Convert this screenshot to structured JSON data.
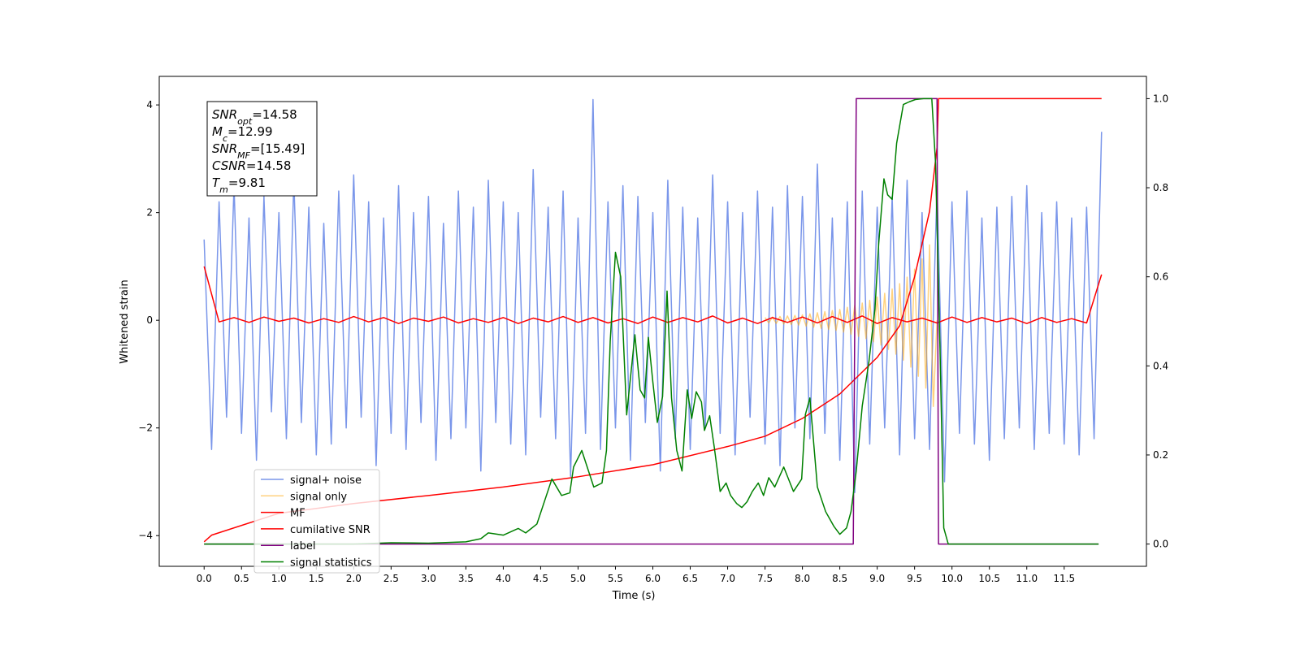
{
  "chart_data": {
    "type": "line",
    "xlabel": "Time (s)",
    "ylabel": "Whitened strain",
    "xlim": [
      -0.6,
      12.6
    ],
    "ylim": [
      -4.57,
      4.53
    ],
    "y2lim": [
      -0.05,
      1.05
    ],
    "xticks": [
      {
        "value": 0,
        "label": "0.0"
      },
      0.5,
      {
        "value": 1,
        "label": "1.0"
      },
      1.5,
      {
        "value": 2,
        "label": "2.0"
      },
      2.5,
      {
        "value": 3,
        "label": "3.0"
      },
      3.5,
      {
        "value": 4,
        "label": "4.0"
      },
      4.5,
      {
        "value": 5,
        "label": "5.0"
      },
      5.5,
      {
        "value": 6,
        "label": "6.0"
      },
      6.5,
      {
        "value": 7,
        "label": "7.0"
      },
      7.5,
      {
        "value": 8,
        "label": "8.0"
      },
      8.5,
      {
        "value": 9,
        "label": "9.0"
      },
      9.5,
      {
        "value": 10,
        "label": "10.0"
      },
      10.5,
      {
        "value": 11,
        "label": "11.0"
      },
      11.5
    ],
    "yticks": [
      {
        "value": -4,
        "label": "−4"
      },
      {
        "value": -2,
        "label": "−2"
      },
      0,
      2,
      4
    ],
    "y2ticks": [
      {
        "value": 0,
        "label": "0.0"
      },
      0.2,
      0.4,
      0.6,
      0.8,
      {
        "value": 1,
        "label": "1.0"
      }
    ],
    "legend": "lower left",
    "annotations": [
      {
        "name": "SNR",
        "sub": "opt",
        "text": "=14.58"
      },
      {
        "name": "M",
        "sub": "c",
        "text": "=12.99"
      },
      {
        "name": "SNR",
        "sub": "MF",
        "text": "=[15.49]"
      },
      {
        "name": "CSNR",
        "text": "=14.58"
      },
      {
        "name": "T",
        "sub": "m",
        "text": "=9.81"
      }
    ],
    "series": [
      {
        "name": "signal+ noise",
        "color": "#4169e1",
        "opacity": 0.7,
        "x": [
          0,
          0.1,
          0.2,
          0.3,
          0.4,
          0.5,
          0.6,
          0.7,
          0.8,
          0.9,
          1,
          1.1,
          1.2,
          1.3,
          1.4,
          1.5,
          1.6,
          1.7,
          1.8,
          1.9,
          2,
          2.1,
          2.2,
          2.3,
          2.4,
          2.5,
          2.6,
          2.7,
          2.8,
          2.9,
          3,
          3.1,
          3.2,
          3.3,
          3.4,
          3.5,
          3.6,
          3.7,
          3.8,
          3.9,
          4,
          4.1,
          4.2,
          4.3,
          4.4,
          4.5,
          4.6,
          4.7,
          4.8,
          4.9,
          5,
          5.1,
          5.2,
          5.3,
          5.4,
          5.5,
          5.6,
          5.7,
          5.8,
          5.9,
          6,
          6.1,
          6.2,
          6.3,
          6.4,
          6.5,
          6.6,
          6.7,
          6.8,
          6.9,
          7,
          7.1,
          7.2,
          7.3,
          7.4,
          7.5,
          7.6,
          7.7,
          7.8,
          7.9,
          8,
          8.1,
          8.2,
          8.3,
          8.4,
          8.5,
          8.6,
          8.7,
          8.8,
          8.9,
          9,
          9.1,
          9.2,
          9.3,
          9.4,
          9.5,
          9.6,
          9.7,
          9.8,
          9.9,
          10,
          10.1,
          10.2,
          10.3,
          10.4,
          10.5,
          10.6,
          10.7,
          10.8,
          10.9,
          11,
          11.1,
          11.2,
          11.3,
          11.4,
          11.5,
          11.6,
          11.7,
          11.8,
          11.9,
          12
        ],
        "values": [
          1.5,
          -2.4,
          2.2,
          -1.8,
          2.5,
          -2.1,
          1.9,
          -2.6,
          2.3,
          -1.7,
          2.0,
          -2.2,
          2.6,
          -1.9,
          2.1,
          -2.5,
          1.8,
          -2.3,
          2.4,
          -2.0,
          2.7,
          -1.8,
          2.2,
          -2.7,
          1.9,
          -2.1,
          2.5,
          -2.4,
          2.0,
          -1.9,
          2.3,
          -2.6,
          1.8,
          -2.2,
          2.4,
          -2.0,
          2.1,
          -2.8,
          2.6,
          -1.9,
          2.2,
          -2.3,
          2.0,
          -2.5,
          2.8,
          -1.8,
          2.1,
          -2.2,
          2.4,
          -2.9,
          1.9,
          -2.1,
          4.1,
          -2.4,
          2.2,
          -2.0,
          2.5,
          -2.6,
          2.3,
          -1.9,
          2.0,
          -2.8,
          2.6,
          -2.2,
          2.1,
          -2.4,
          1.9,
          -2.0,
          2.7,
          -2.1,
          2.2,
          -2.5,
          2.0,
          -1.8,
          2.4,
          -2.3,
          2.1,
          -2.7,
          2.5,
          -2.0,
          2.3,
          -2.2,
          2.9,
          -2.1,
          1.9,
          -2.6,
          2.2,
          -3.2,
          2.4,
          -2.3,
          2.1,
          -2.0,
          2.3,
          -2.5,
          2.6,
          -2.2,
          2.0,
          -2.4,
          2.5,
          -3.0,
          2.2,
          -2.1,
          2.4,
          -2.3,
          1.9,
          -2.6,
          2.1,
          -2.2,
          2.3,
          -2.0,
          2.5,
          -2.4,
          2.0,
          -2.1,
          2.2,
          -2.3,
          1.9,
          -2.5,
          2.1,
          -2.2,
          3.5
        ]
      },
      {
        "name": "signal only",
        "color": "#ffa500",
        "opacity": 0.5,
        "x": [
          7.5,
          7.55,
          7.6,
          7.65,
          7.7,
          7.75,
          7.8,
          7.85,
          7.9,
          7.95,
          8,
          8.05,
          8.1,
          8.15,
          8.2,
          8.25,
          8.3,
          8.35,
          8.4,
          8.45,
          8.5,
          8.55,
          8.6,
          8.65,
          8.7,
          8.75,
          8.8,
          8.85,
          8.9,
          8.95,
          9,
          9.05,
          9.1,
          9.15,
          9.2,
          9.25,
          9.3,
          9.35,
          9.4,
          9.45,
          9.5,
          9.55,
          9.6,
          9.65,
          9.7,
          9.75,
          9.8
        ],
        "values": [
          0.05,
          -0.05,
          0.06,
          -0.06,
          0.07,
          -0.07,
          0.08,
          -0.08,
          0.09,
          -0.09,
          0.1,
          -0.11,
          0.12,
          -0.13,
          0.14,
          -0.15,
          0.16,
          -0.17,
          0.18,
          -0.19,
          0.2,
          -0.22,
          0.24,
          -0.26,
          0.28,
          -0.3,
          0.32,
          -0.34,
          0.37,
          -0.4,
          0.43,
          -0.46,
          0.5,
          -0.54,
          0.58,
          -0.63,
          0.68,
          -0.74,
          0.8,
          -0.87,
          0.95,
          -1.04,
          1.14,
          -1.26,
          1.4,
          -1.6,
          0
        ]
      },
      {
        "name": "MF",
        "color": "#ff0000",
        "opacity": 1,
        "x": [
          0,
          0.2,
          0.4,
          0.6,
          0.8,
          1,
          1.2,
          1.4,
          1.6,
          1.8,
          2,
          2.2,
          2.4,
          2.6,
          2.8,
          3,
          3.2,
          3.4,
          3.6,
          3.8,
          4,
          4.2,
          4.4,
          4.6,
          4.8,
          5,
          5.2,
          5.4,
          5.6,
          5.8,
          6,
          6.2,
          6.4,
          6.6,
          6.8,
          7,
          7.2,
          7.4,
          7.6,
          7.8,
          8,
          8.2,
          8.4,
          8.6,
          8.8,
          9,
          9.2,
          9.4,
          9.6,
          9.8,
          10,
          10.2,
          10.4,
          10.6,
          10.8,
          11,
          11.2,
          11.4,
          11.6,
          11.8,
          12
        ],
        "values": [
          1.0,
          -0.03,
          0.05,
          -0.04,
          0.06,
          -0.02,
          0.04,
          -0.05,
          0.03,
          -0.04,
          0.07,
          -0.03,
          0.05,
          -0.06,
          0.04,
          -0.02,
          0.06,
          -0.05,
          0.03,
          -0.04,
          0.05,
          -0.06,
          0.04,
          -0.03,
          0.07,
          -0.04,
          0.05,
          -0.05,
          0.03,
          -0.06,
          0.06,
          -0.04,
          0.05,
          -0.03,
          0.08,
          -0.05,
          0.04,
          -0.06,
          0.05,
          -0.04,
          0.06,
          -0.05,
          0.07,
          -0.04,
          0.08,
          -0.06,
          0.05,
          -0.03,
          0.04,
          -0.05,
          0.06,
          -0.04,
          0.05,
          -0.03,
          0.04,
          -0.06,
          0.05,
          -0.04,
          0.03,
          -0.05,
          0.85
        ]
      },
      {
        "name": "cumilative SNR",
        "color": "#ff0000",
        "opacity": 1,
        "axis": "y2",
        "x": [
          0,
          0.1,
          1,
          2,
          3,
          4,
          5,
          6,
          7,
          7.5,
          8,
          8.5,
          9,
          9.3,
          9.5,
          9.7,
          9.8,
          9.82,
          12
        ],
        "values": [
          0.005,
          0.02,
          0.069,
          0.091,
          0.109,
          0.128,
          0.151,
          0.178,
          0.219,
          0.242,
          0.282,
          0.337,
          0.419,
          0.49,
          0.6,
          0.747,
          0.89,
          1.0,
          1.0
        ]
      },
      {
        "name": "label",
        "color": "#800080",
        "opacity": 1,
        "axis": "y2",
        "x": [
          0,
          8.68,
          8.72,
          9.8,
          9.82,
          11.96
        ],
        "values": [
          0,
          0,
          1,
          1,
          0,
          0
        ]
      },
      {
        "name": "signal statistics",
        "color": "#008000",
        "opacity": 1,
        "axis": "y2",
        "x": [
          0,
          1,
          2,
          2.5,
          3,
          3.5,
          3.7,
          3.8,
          4,
          4.2,
          4.3,
          4.45,
          4.65,
          4.78,
          4.89,
          4.94,
          5.05,
          5.21,
          5.32,
          5.38,
          5.43,
          5.5,
          5.57,
          5.65,
          5.76,
          5.83,
          5.89,
          5.94,
          6.0,
          6.06,
          6.13,
          6.19,
          6.25,
          6.32,
          6.39,
          6.46,
          6.52,
          6.58,
          6.65,
          6.69,
          6.76,
          6.82,
          6.9,
          6.98,
          7.04,
          7.12,
          7.19,
          7.26,
          7.33,
          7.41,
          7.48,
          7.55,
          7.63,
          7.75,
          7.88,
          7.99,
          8.04,
          8.1,
          8.2,
          8.31,
          8.42,
          8.5,
          8.59,
          8.65,
          8.72,
          8.8,
          8.89,
          8.97,
          9.02,
          9.09,
          9.14,
          9.2,
          9.26,
          9.35,
          9.43,
          9.51,
          9.62,
          9.73,
          9.78,
          9.84,
          9.89,
          9.95,
          11.96
        ],
        "values": [
          0,
          0,
          0,
          0.003,
          0.002,
          0.005,
          0.012,
          0.025,
          0.02,
          0.035,
          0.025,
          0.045,
          0.146,
          0.109,
          0.115,
          0.173,
          0.21,
          0.128,
          0.137,
          0.21,
          0.455,
          0.655,
          0.6,
          0.29,
          0.47,
          0.346,
          0.328,
          0.464,
          0.364,
          0.273,
          0.331,
          0.568,
          0.328,
          0.21,
          0.164,
          0.346,
          0.282,
          0.342,
          0.319,
          0.255,
          0.288,
          0.219,
          0.118,
          0.137,
          0.109,
          0.091,
          0.082,
          0.095,
          0.118,
          0.137,
          0.109,
          0.149,
          0.128,
          0.173,
          0.118,
          0.146,
          0.291,
          0.328,
          0.128,
          0.073,
          0.04,
          0.022,
          0.036,
          0.073,
          0.164,
          0.31,
          0.41,
          0.528,
          0.674,
          0.82,
          0.784,
          0.774,
          0.9,
          0.987,
          0.993,
          0.998,
          1.0,
          1.0,
          0.856,
          0.437,
          0.036,
          0,
          0
        ]
      }
    ]
  }
}
